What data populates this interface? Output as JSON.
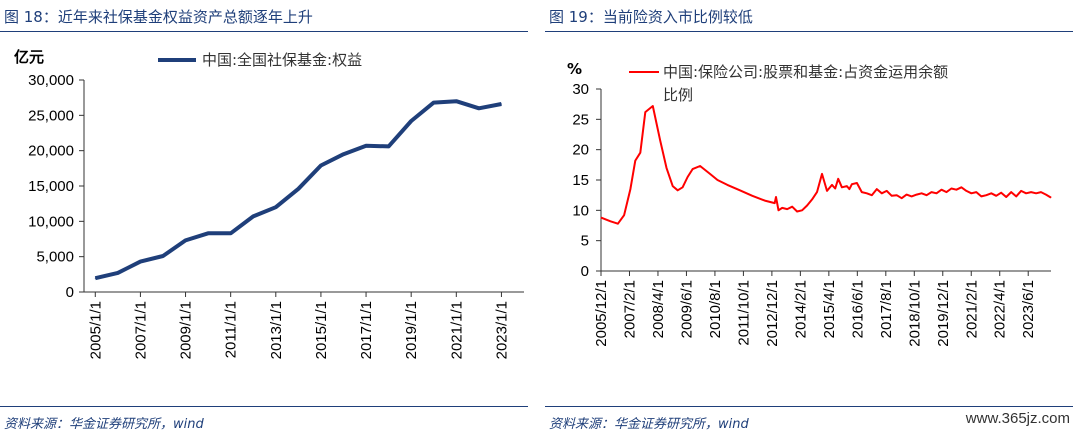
{
  "figures": {
    "left": {
      "title": "图 18：近年来社保基金权益资产总额逐年上升",
      "source": "资料来源：华金证券研究所，wind"
    },
    "right": {
      "title": "图 19：当前险资入市比例较低",
      "source": "资料来源：华金证券研究所，wind"
    }
  },
  "watermark": "www.365jz.com",
  "chart_data": [
    {
      "type": "line",
      "unit": "亿元",
      "legend_position": "top",
      "color": "#1f3f7a",
      "ylim": [
        0,
        30000
      ],
      "y_ticks": [
        0,
        5000,
        10000,
        15000,
        20000,
        25000,
        30000
      ],
      "y_tick_labels": [
        "0",
        "5,000",
        "10,000",
        "15,000",
        "20,000",
        "25,000",
        "30,000"
      ],
      "x_tick_labels": [
        "2005/1/1",
        "2007/1/1",
        "2009/1/1",
        "2011/1/1",
        "2013/1/1",
        "2015/1/1",
        "2017/1/1",
        "2019/1/1",
        "2021/1/1",
        "2023/1/1"
      ],
      "series": [
        {
          "name": "中国:全国社保基金:权益",
          "x": [
            "2005",
            "2006",
            "2007",
            "2008",
            "2009",
            "2010",
            "2011",
            "2012",
            "2013",
            "2014",
            "2015",
            "2016",
            "2017",
            "2018",
            "2019",
            "2020",
            "2021",
            "2022",
            "2023"
          ],
          "values": [
            1950,
            2700,
            4300,
            5100,
            7300,
            8300,
            8300,
            10700,
            12000,
            14600,
            17900,
            19500,
            20700,
            20600,
            24200,
            26800,
            27000,
            26000,
            26600
          ]
        }
      ]
    },
    {
      "type": "line",
      "unit": "%",
      "legend_position": "top",
      "color": "#ff0000",
      "ylim": [
        0,
        30
      ],
      "y_ticks": [
        0,
        5,
        10,
        15,
        20,
        25,
        30
      ],
      "y_tick_labels": [
        "0",
        "5",
        "10",
        "15",
        "20",
        "25",
        "30"
      ],
      "x_tick_labels": [
        "2005/12/1",
        "2007/2/1",
        "2008/4/1",
        "2009/6/1",
        "2010/8/1",
        "2011/10/1",
        "2012/12/1",
        "2014/2/1",
        "2015/4/1",
        "2016/6/1",
        "2017/8/1",
        "2018/10/1",
        "2019/12/1",
        "2021/2/1",
        "2022/4/1",
        "2023/6/1"
      ],
      "series": [
        {
          "name": "中国:保险公司:股票和基金:占资金运用余额比例",
          "x": [
            2005.92,
            2006.3,
            2006.6,
            2006.85,
            2007.1,
            2007.3,
            2007.5,
            2007.7,
            2008.0,
            2008.3,
            2008.55,
            2008.8,
            2009.0,
            2009.2,
            2009.4,
            2009.6,
            2009.9,
            2010.3,
            2010.6,
            2011.0,
            2011.5,
            2012.0,
            2012.5,
            2012.9,
            2012.95,
            2013.05,
            2013.2,
            2013.4,
            2013.6,
            2013.8,
            2014.0,
            2014.2,
            2014.4,
            2014.6,
            2014.8,
            2015.0,
            2015.2,
            2015.33,
            2015.45,
            2015.6,
            2015.8,
            2015.9,
            2016.0,
            2016.2,
            2016.4,
            2016.6,
            2016.8,
            2017.0,
            2017.2,
            2017.4,
            2017.6,
            2017.8,
            2018.0,
            2018.2,
            2018.4,
            2018.6,
            2018.8,
            2019.0,
            2019.2,
            2019.4,
            2019.6,
            2019.8,
            2020.0,
            2020.2,
            2020.4,
            2020.6,
            2020.8,
            2021.0,
            2021.2,
            2021.4,
            2021.6,
            2021.8,
            2022.0,
            2022.2,
            2022.4,
            2022.6,
            2022.8,
            2023.0,
            2023.2,
            2023.4,
            2023.6,
            2023.8,
            2024.0
          ],
          "values": [
            8.8,
            8.2,
            7.8,
            9.2,
            13.5,
            18.2,
            19.5,
            26.2,
            27.2,
            21.5,
            17.0,
            14.0,
            13.3,
            13.8,
            15.5,
            16.8,
            17.3,
            16.0,
            15.0,
            14.2,
            13.3,
            12.4,
            11.6,
            11.2,
            12.2,
            10.0,
            10.4,
            10.2,
            10.6,
            9.8,
            10.0,
            10.8,
            11.8,
            13.0,
            16.0,
            13.2,
            14.2,
            13.6,
            15.2,
            13.8,
            14.0,
            13.5,
            14.3,
            14.5,
            13.0,
            12.8,
            12.5,
            13.5,
            12.8,
            13.2,
            12.4,
            12.5,
            12.0,
            12.6,
            12.3,
            12.6,
            12.8,
            12.5,
            13.0,
            12.8,
            13.4,
            13.0,
            13.6,
            13.4,
            13.8,
            13.2,
            12.8,
            13.0,
            12.3,
            12.5,
            12.8,
            12.4,
            12.9,
            12.2,
            13.0,
            12.3,
            13.2,
            12.8,
            13.0,
            12.8,
            13.0,
            12.6,
            12.1
          ]
        }
      ]
    }
  ]
}
